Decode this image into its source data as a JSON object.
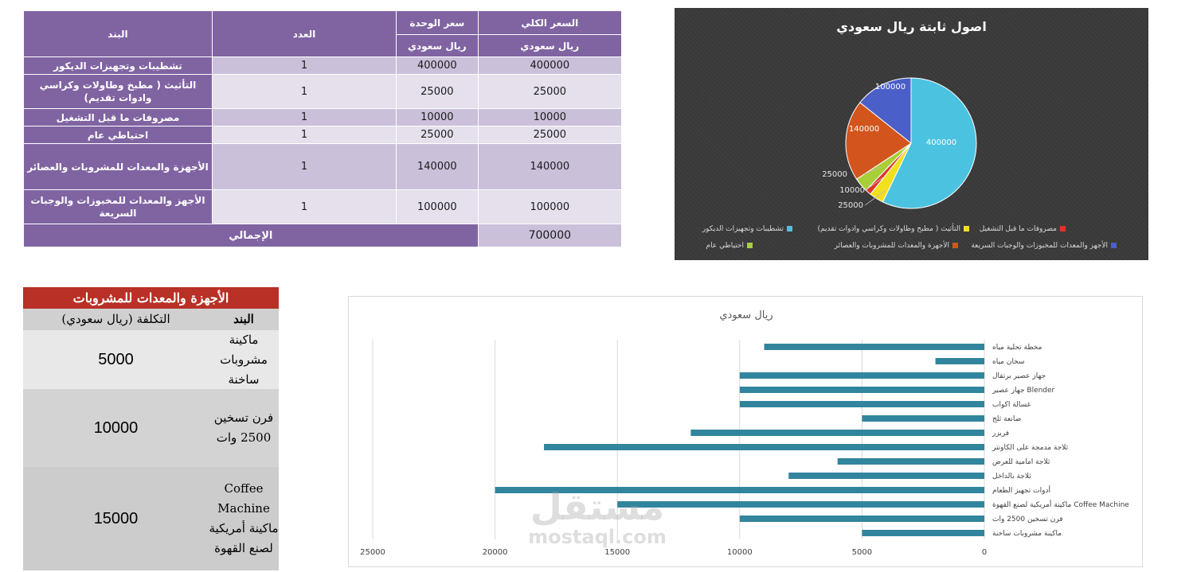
{
  "cost_table": {
    "headers": {
      "total": "السعر الكلي",
      "unit": "سعر الوحدة",
      "qty": "العدد",
      "item": "البند",
      "currency": "ريال سعودي"
    },
    "rows": [
      {
        "item": "تشطيبات وتجهيزات الديكور",
        "qty": "1",
        "unit": "400000",
        "total": "400000"
      },
      {
        "item": "التأثيث ( مطبخ وطاولات وكراسي وادوات تقديم)",
        "qty": "1",
        "unit": "25000",
        "total": "25000"
      },
      {
        "item": "مصروفات ما قبل التشغيل",
        "qty": "1",
        "unit": "10000",
        "total": "10000"
      },
      {
        "item": "احتياطي عام",
        "qty": "1",
        "unit": "25000",
        "total": "25000"
      },
      {
        "item": "الأجهزة والمعدات للمشروبات والعصائر",
        "qty": "1",
        "unit": "140000",
        "total": "140000"
      },
      {
        "item": "الأجهز والمعدات للمخبوزات والوجبات السريعة",
        "qty": "1",
        "unit": "100000",
        "total": "100000"
      }
    ],
    "total_label": "الإجمالي",
    "total_value": "700000"
  },
  "beverage_table": {
    "title": "الأجهزة والمعدات للمشروبات",
    "col_item": "البند",
    "col_cost": "التكلفة (ريال سعودي)",
    "rows": [
      {
        "item": "ماكينة مشروبات ساخنة",
        "cost": "5000",
        "bg": "#e8e8e8"
      },
      {
        "item": "فرن تسخين 2500 وات",
        "cost": "10000",
        "bg": "#d3d3d3"
      },
      {
        "item": "Coffee Machine ماكينة أمريكية لصنع القهوة",
        "cost": "15000",
        "bg": "#cccccc"
      }
    ]
  },
  "watermark": {
    "ar": "مستقل",
    "en": "mostaql.com"
  },
  "chart_data": [
    {
      "type": "pie",
      "title": "اصول ثابتة ريال سعودي",
      "categories": [
        "تشطيبات وتجهيزات الديكور",
        "التأثيث ( مطبخ وطاولات وكراسي وادوات تقديم)",
        "مصروفات ما قبل التشغيل",
        "احتياطي عام",
        "الأجهزة والمعدات للمشروبات والعصائر",
        "الأجهز والمعدات للمخبوزات والوجبات السريعة"
      ],
      "values": [
        400000,
        25000,
        10000,
        25000,
        140000,
        100000
      ],
      "colors": [
        "#4bc3e0",
        "#f2df1e",
        "#e0342a",
        "#a8cf38",
        "#d2551e",
        "#4a5fc7"
      ],
      "data_labels": [
        "400000",
        "25000",
        "10000",
        "25000",
        "140000",
        "100000"
      ],
      "legend_position": "bottom"
    },
    {
      "type": "bar",
      "orientation": "horizontal",
      "title": "ريال سعودي",
      "categories": [
        "مخطة تحلية مياه",
        "سخان مياه",
        "جهاز عصير برتقال",
        "جهاز عصير  Blender",
        "غسالة اكواب",
        "صانعة ثلج",
        "فريزر",
        "ثلاجة مدمجة على الكاونتر",
        "ثلاجة امامية للعرض",
        "ثلاجة بالداخل",
        "أدوات تجهيز الطعام",
        "ماكينة أمريكية لصنع القهوة  Coffee Machine",
        "فرن تسخين 2500 وات",
        "ماكينة مشروبات ساخنة"
      ],
      "values": [
        9000,
        2000,
        10000,
        10000,
        10000,
        5000,
        12000,
        18000,
        6000,
        8000,
        20000,
        15000,
        10000,
        5000
      ],
      "color": "#31859c",
      "xlim": [
        0,
        25000
      ],
      "x_ticks": [
        "0",
        "5000",
        "10000",
        "15000",
        "20000",
        "25000"
      ],
      "x_reversed": true,
      "grid": true
    }
  ]
}
